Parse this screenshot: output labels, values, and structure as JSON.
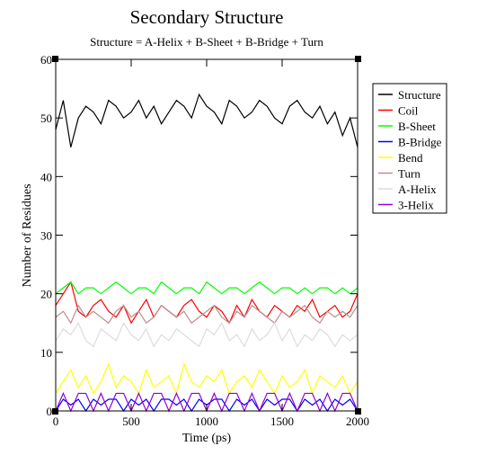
{
  "chart_data": {
    "type": "line",
    "title": "Secondary Structure",
    "subtitle": "Structure = A-Helix + B-Sheet + B-Bridge + Turn",
    "x_label": "Time (ps)",
    "y_label": "Number of Residues",
    "xlim": [
      0,
      2000
    ],
    "xticks": [
      0,
      500,
      1000,
      1500,
      2000
    ],
    "ylim": [
      0,
      60
    ],
    "yticks": [
      0,
      10,
      20,
      30,
      40,
      50,
      60
    ],
    "legend": "right",
    "x": [
      0,
      50,
      100,
      150,
      200,
      250,
      300,
      350,
      400,
      450,
      500,
      550,
      600,
      650,
      700,
      750,
      800,
      850,
      900,
      950,
      1000,
      1050,
      1100,
      1150,
      1200,
      1250,
      1300,
      1350,
      1400,
      1450,
      1500,
      1550,
      1600,
      1650,
      1700,
      1750,
      1800,
      1850,
      1900,
      1950,
      2000
    ],
    "series": [
      {
        "name": "Structure",
        "color": "#000000",
        "values": [
          48,
          53,
          45,
          50,
          52,
          51,
          49,
          53,
          52,
          50,
          51,
          53,
          50,
          52,
          49,
          51,
          53,
          52,
          50,
          54,
          52,
          51,
          49,
          53,
          52,
          50,
          51,
          53,
          52,
          50,
          49,
          52,
          53,
          51,
          50,
          52,
          49,
          51,
          47,
          50,
          45
        ]
      },
      {
        "name": "Coil",
        "color": "#ff0000",
        "values": [
          18,
          20,
          22,
          17,
          16,
          18,
          19,
          17,
          16,
          18,
          15,
          17,
          19,
          16,
          18,
          17,
          16,
          18,
          19,
          17,
          16,
          18,
          17,
          15,
          18,
          16,
          19,
          17,
          16,
          18,
          17,
          16,
          18,
          17,
          19,
          16,
          17,
          18,
          16,
          17,
          20
        ]
      },
      {
        "name": "B-Sheet",
        "color": "#00ff00",
        "values": [
          20,
          21,
          22,
          20,
          21,
          21,
          20,
          21,
          22,
          21,
          20,
          21,
          21,
          20,
          22,
          21,
          20,
          21,
          21,
          20,
          22,
          21,
          20,
          21,
          21,
          20,
          21,
          22,
          21,
          20,
          21,
          21,
          20,
          21,
          20,
          21,
          21,
          20,
          21,
          20,
          21
        ]
      },
      {
        "name": "B-Bridge",
        "color": "#0000ff",
        "values": [
          0,
          2,
          1,
          2,
          0,
          2,
          1,
          2,
          2,
          0,
          2,
          1,
          2,
          0,
          2,
          2,
          1,
          2,
          0,
          2,
          1,
          2,
          2,
          0,
          2,
          1,
          2,
          0,
          2,
          1,
          2,
          2,
          0,
          2,
          1,
          2,
          0,
          2,
          1,
          2,
          0
        ]
      },
      {
        "name": "Bend",
        "color": "#ffff00",
        "values": [
          3,
          5,
          7,
          4,
          6,
          3,
          5,
          8,
          4,
          6,
          5,
          3,
          7,
          4,
          5,
          6,
          3,
          8,
          5,
          4,
          6,
          5,
          7,
          3,
          5,
          6,
          4,
          7,
          5,
          3,
          6,
          4,
          5,
          7,
          3,
          6,
          5,
          4,
          6,
          3,
          5
        ]
      },
      {
        "name": "Turn",
        "color": "#bc8f8f",
        "values": [
          16,
          17,
          15,
          18,
          16,
          17,
          16,
          15,
          17,
          18,
          16,
          17,
          15,
          16,
          18,
          17,
          16,
          17,
          15,
          16,
          17,
          18,
          16,
          15,
          17,
          16,
          18,
          17,
          16,
          15,
          17,
          16,
          17,
          18,
          16,
          15,
          17,
          16,
          17,
          16,
          18
        ]
      },
      {
        "name": "A-Helix",
        "color": "#dcdcdc",
        "values": [
          12,
          14,
          13,
          15,
          12,
          11,
          14,
          13,
          12,
          15,
          13,
          12,
          14,
          11,
          13,
          12,
          14,
          13,
          12,
          11,
          14,
          13,
          15,
          12,
          13,
          11,
          14,
          12,
          13,
          15,
          12,
          14,
          11,
          13,
          12,
          14,
          13,
          11,
          13,
          12,
          13
        ]
      },
      {
        "name": "3-Helix",
        "color": "#9400d3",
        "values": [
          0,
          3,
          0,
          3,
          3,
          0,
          3,
          0,
          3,
          3,
          0,
          3,
          0,
          3,
          3,
          0,
          3,
          0,
          3,
          3,
          0,
          3,
          0,
          3,
          3,
          0,
          3,
          0,
          3,
          3,
          0,
          3,
          0,
          3,
          3,
          0,
          3,
          0,
          3,
          3,
          0
        ]
      }
    ]
  }
}
